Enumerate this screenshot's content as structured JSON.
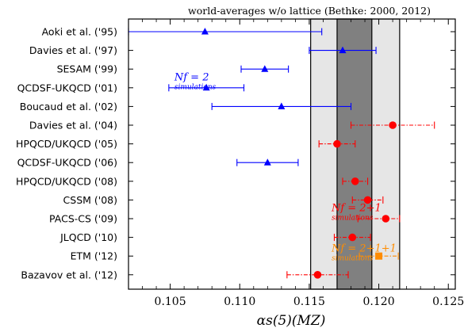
{
  "chart_data": {
    "type": "scatter",
    "title": "world-averages w/o lattice (Bethke: 2000, 2012)",
    "xlabel": "αs(5)(MZ)",
    "xlim": [
      0.102,
      0.1255
    ],
    "xticks": [
      0.105,
      0.11,
      0.115,
      0.12,
      0.125
    ],
    "xtick_labels": [
      "0.105",
      "0.110",
      "0.115",
      "0.120",
      "0.125"
    ],
    "bands": [
      {
        "from": 0.1151,
        "to": 0.1215,
        "color": "#e6e6e6"
      },
      {
        "from": 0.117,
        "to": 0.1195,
        "color": "#808080"
      }
    ],
    "categories": [
      "Aoki et al. ('95)",
      "Davies et al. ('97)",
      "SESAM ('99)",
      "QCDSF-UKQCD ('01)",
      "Boucaud et al. ('02)",
      "Davies et al. ('04)",
      "HPQCD/UKQCD ('05)",
      "QCDSF-UKQCD ('06)",
      "HPQCD/UKQCD ('08)",
      "CSSM ('08)",
      "PACS-CS ('09)",
      "JLQCD ('10)",
      "ETM ('12)",
      "Bazavov et al. ('12)"
    ],
    "series": [
      {
        "marker": "triangle",
        "color": "#0000ff",
        "line": "solid",
        "points": [
          {
            "row": 0,
            "value": 0.1075,
            "low": 0.102,
            "high": 0.1159
          },
          {
            "row": 1,
            "value": 0.1174,
            "low": 0.115,
            "high": 0.1198
          },
          {
            "row": 2,
            "value": 0.1118,
            "low": 0.1101,
            "high": 0.1135
          },
          {
            "row": 3,
            "value": 0.1076,
            "low": 0.1049,
            "high": 0.1103
          },
          {
            "row": 4,
            "value": 0.113,
            "low": 0.108,
            "high": 0.118
          },
          {
            "row": 7,
            "value": 0.112,
            "low": 0.1098,
            "high": 0.1142
          }
        ]
      },
      {
        "marker": "circle",
        "color": "#ff0000",
        "line": "dashdot",
        "points": [
          {
            "row": 5,
            "value": 0.121,
            "low": 0.118,
            "high": 0.124
          },
          {
            "row": 6,
            "value": 0.117,
            "low": 0.1157,
            "high": 0.1183
          },
          {
            "row": 8,
            "value": 0.1183,
            "low": 0.1174,
            "high": 0.1192
          },
          {
            "row": 9,
            "value": 0.1192,
            "low": 0.1181,
            "high": 0.1203
          },
          {
            "row": 10,
            "value": 0.1205,
            "low": 0.1185,
            "high": 0.1215
          },
          {
            "row": 11,
            "value": 0.1181,
            "low": 0.1168,
            "high": 0.1194
          },
          {
            "row": 13,
            "value": 0.1156,
            "low": 0.1134,
            "high": 0.1178
          }
        ]
      },
      {
        "marker": "square",
        "color": "#ff8c00",
        "line": "dashdot",
        "points": [
          {
            "row": 12,
            "value": 0.12,
            "low": 0.1186,
            "high": 0.1214
          }
        ]
      }
    ],
    "annotations": [
      {
        "main": "Nf = 2",
        "sub": "simulations",
        "color": "#0000ff",
        "x_at": 0.1053,
        "row_at": 2.6
      },
      {
        "main": "Nf = 2+1",
        "sub": "simulations",
        "color": "#ff0000",
        "x_at": 0.1166,
        "row_at": 9.6
      },
      {
        "main": "Nf = 2+1+1",
        "sub": "simulations",
        "color": "#ff8c00",
        "x_at": 0.1166,
        "row_at": 11.75
      }
    ]
  }
}
